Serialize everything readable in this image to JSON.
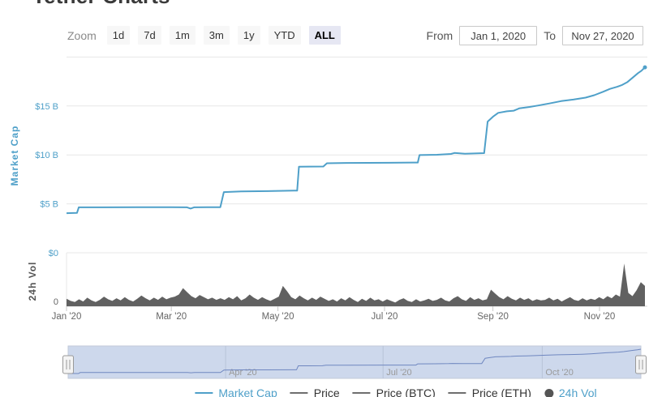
{
  "page_title": "Tether Charts",
  "toolbar": {
    "zoom_label": "Zoom",
    "buttons": [
      "1d",
      "7d",
      "1m",
      "3m",
      "1y",
      "YTD",
      "ALL"
    ],
    "selected": "ALL",
    "from_label": "From",
    "from_value": "Jan 1, 2020",
    "to_label": "To",
    "to_value": "Nov 27, 2020"
  },
  "chart_data": {
    "type": "line",
    "x_unit": "days since Jan 1, 2020",
    "x_range": [
      0,
      331
    ],
    "grid": "horizontal-on",
    "y_axis": {
      "label": "Market Cap",
      "unit": "USD billions",
      "range": [
        0,
        20
      ],
      "ticks": [
        "$15 B",
        "$10 B",
        "$5 B",
        "$0"
      ],
      "tick_values": [
        15,
        10,
        5,
        0
      ],
      "gridline_values": [
        20,
        15,
        10,
        5,
        0
      ],
      "color": "#4fa0c9"
    },
    "vol_axis": {
      "label": "24h Vol",
      "bottom_tick": "0",
      "label_color": "#555555",
      "tick_color": "#666666"
    },
    "x_ticks": {
      "labels": [
        "Jan '20",
        "Mar '20",
        "May '20",
        "Jul '20",
        "Sep '20",
        "Nov '20"
      ],
      "days": [
        0,
        60,
        121,
        182,
        244,
        305
      ],
      "color": "#666666"
    },
    "market_cap": {
      "name": "Market Cap",
      "unit": "USD billions",
      "color": "#4fa0c9",
      "points": [
        [
          0,
          4.05
        ],
        [
          6,
          4.07
        ],
        [
          7,
          4.64
        ],
        [
          20,
          4.64
        ],
        [
          40,
          4.66
        ],
        [
          60,
          4.66
        ],
        [
          69,
          4.64
        ],
        [
          71,
          4.52
        ],
        [
          73,
          4.64
        ],
        [
          88,
          4.66
        ],
        [
          90,
          6.2
        ],
        [
          100,
          6.27
        ],
        [
          115,
          6.3
        ],
        [
          130,
          6.35
        ],
        [
          132,
          6.35
        ],
        [
          133,
          8.79
        ],
        [
          147,
          8.82
        ],
        [
          149,
          9.15
        ],
        [
          160,
          9.18
        ],
        [
          185,
          9.2
        ],
        [
          201,
          9.22
        ],
        [
          202,
          9.98
        ],
        [
          212,
          10.02
        ],
        [
          220,
          10.1
        ],
        [
          222,
          10.2
        ],
        [
          228,
          10.12
        ],
        [
          239,
          10.18
        ],
        [
          241,
          13.4
        ],
        [
          244,
          13.9
        ],
        [
          247,
          14.3
        ],
        [
          252,
          14.45
        ],
        [
          256,
          14.52
        ],
        [
          259,
          14.75
        ],
        [
          265,
          14.9
        ],
        [
          270,
          15.05
        ],
        [
          276,
          15.25
        ],
        [
          283,
          15.5
        ],
        [
          290,
          15.65
        ],
        [
          297,
          15.85
        ],
        [
          302,
          16.1
        ],
        [
          307,
          16.45
        ],
        [
          311,
          16.75
        ],
        [
          315,
          16.95
        ],
        [
          318,
          17.15
        ],
        [
          321,
          17.45
        ],
        [
          324,
          17.9
        ],
        [
          327,
          18.35
        ],
        [
          329,
          18.6
        ],
        [
          331,
          18.95
        ]
      ]
    },
    "volume": {
      "name": "24h Vol",
      "unit": "relative height, % of volume pane",
      "color": "#616161",
      "values": [
        14,
        10,
        8,
        13,
        9,
        16,
        11,
        8,
        12,
        18,
        13,
        10,
        15,
        11,
        17,
        12,
        9,
        14,
        20,
        15,
        11,
        16,
        12,
        18,
        13,
        16,
        18,
        22,
        34,
        26,
        19,
        15,
        21,
        17,
        13,
        16,
        12,
        15,
        12,
        17,
        13,
        19,
        11,
        15,
        22,
        16,
        12,
        17,
        13,
        10,
        14,
        18,
        38,
        28,
        17,
        13,
        20,
        15,
        11,
        16,
        12,
        18,
        14,
        10,
        13,
        9,
        15,
        11,
        17,
        12,
        8,
        14,
        10,
        16,
        11,
        13,
        9,
        13,
        10,
        7,
        12,
        15,
        10,
        8,
        13,
        9,
        11,
        14,
        10,
        12,
        16,
        11,
        9,
        15,
        19,
        13,
        10,
        17,
        12,
        15,
        11,
        13,
        31,
        24,
        17,
        13,
        19,
        14,
        11,
        16,
        12,
        15,
        10,
        13,
        11,
        12,
        16,
        11,
        14,
        9,
        13,
        17,
        12,
        10,
        15,
        11,
        14,
        12,
        17,
        13,
        19,
        15,
        22,
        18,
        80,
        25,
        19,
        30,
        45,
        38
      ]
    },
    "navigator": {
      "labels": [
        "Apr '20",
        "Jul '20",
        "Oct '20"
      ],
      "days": [
        91,
        182,
        274
      ],
      "mask_color": "#cdd8ec",
      "line_color": "#6f87c0",
      "label_color": "#999999"
    },
    "legend": [
      {
        "label": "Market Cap",
        "marker": "line",
        "color": "#4fa0c9",
        "text_color": "#4fa0c9"
      },
      {
        "label": "Price",
        "marker": "line",
        "color": "#6e6e6e",
        "text_color": "#333333"
      },
      {
        "label": "Price (BTC)",
        "marker": "line",
        "color": "#6e6e6e",
        "text_color": "#333333"
      },
      {
        "label": "Price (ETH)",
        "marker": "line",
        "color": "#6e6e6e",
        "text_color": "#333333"
      },
      {
        "label": "24h Vol",
        "marker": "circle",
        "color": "#555555",
        "text_color": "#4fa0c9"
      }
    ]
  }
}
